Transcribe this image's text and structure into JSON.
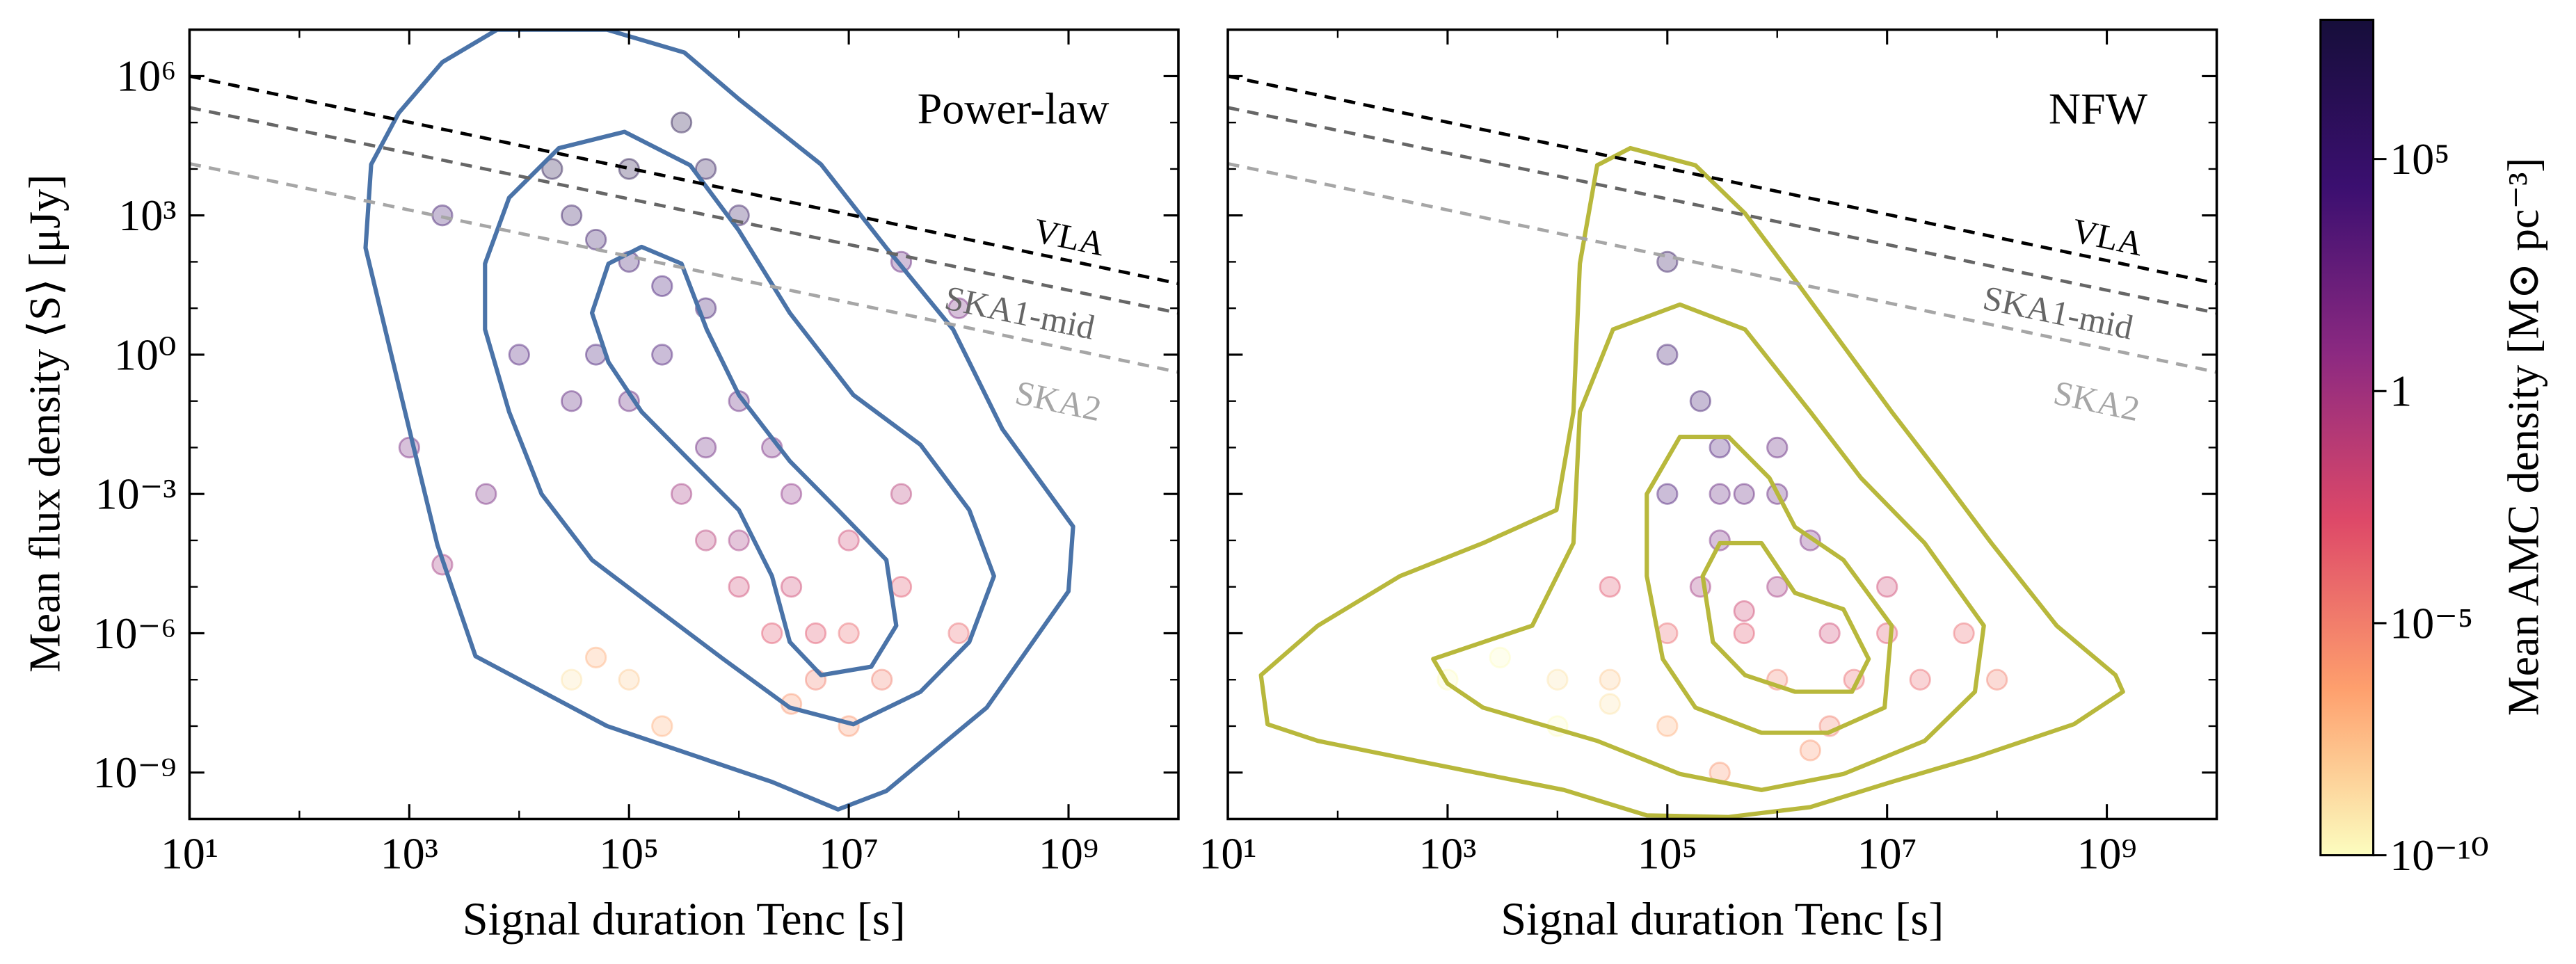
{
  "chart_data": [
    {
      "type": "scatter",
      "title": "Power-law",
      "xlabel": "Signal duration Tenc [s]",
      "ylabel": "Mean flux density ⟨S⟩ [μJy]",
      "xlim": [
        10,
        10000000000.0
      ],
      "ylim": [
        1e-10,
        10000000.0
      ],
      "log_x": true,
      "log_y": true,
      "xticks": [
        {
          "value": 10,
          "label": "10¹"
        },
        {
          "value": 1000,
          "label": "10³"
        },
        {
          "value": 100000,
          "label": "10⁵"
        },
        {
          "value": 10000000,
          "label": "10⁷"
        },
        {
          "value": 1000000000,
          "label": "10⁹"
        }
      ],
      "xminor": [
        100,
        10000,
        1000000,
        100000000
      ],
      "yticks": [
        {
          "value": 1000000,
          "label": "10⁶"
        },
        {
          "value": 1000,
          "label": "10³"
        },
        {
          "value": 1,
          "label": "10⁰"
        },
        {
          "value": 0.001,
          "label": "10⁻³"
        },
        {
          "value": 1e-06,
          "label": "10⁻⁶"
        },
        {
          "value": 1e-09,
          "label": "10⁻⁹"
        }
      ],
      "yminor": [
        100000.0,
        10000.0,
        100,
        10,
        0.1,
        0.01,
        0.0001,
        1e-05,
        1e-07,
        1e-08
      ],
      "alpha": 0.28,
      "contour_color": "#4a73a8",
      "x": [
        30000.0,
        50000.0,
        100000.0,
        200000.0,
        100000.0,
        300000.0,
        20000.0,
        500000.0,
        1000000.0,
        50000.0,
        200000.0,
        500000.0,
        1000000.0,
        2000000.0,
        3000000.0,
        500000.0,
        100000.0,
        30000.0,
        10000.0,
        1000000.0,
        3000000.0,
        5000000.0,
        10000000.0,
        20000000.0,
        5000000.0,
        3000000.0,
        10000000.0,
        2000000.0,
        1000000.0,
        500000.0,
        300000.0,
        10000000.0,
        30000000.0,
        30000000.0,
        100000000.0,
        100000.0,
        30000.0,
        50000.0,
        200000.0,
        1000.0,
        2000.0,
        100000000.0,
        30000000.0,
        2000.0,
        5000.0
      ],
      "values": [
        1000.0,
        300.0,
        100.0,
        30.0,
        10000.0,
        100000.0,
        10000.0,
        10000.0,
        1000.0,
        1,
        1,
        10,
        0.1,
        0.01,
        0.001,
        0.01,
        0.1,
        0.1,
        1,
        0.0001,
        1e-05,
        1e-06,
        1e-06,
        1e-07,
        1e-07,
        3e-08,
        1e-08,
        1e-06,
        1e-05,
        0.0001,
        0.001,
        0.0001,
        1e-05,
        0.001,
        1e-06,
        1e-07,
        1e-07,
        3e-07,
        1e-08,
        0.01,
        1000.0,
        10,
        100,
        3e-05,
        0.001
      ],
      "color_values": [
        1000000.0,
        300000.0,
        100000.0,
        30000.0,
        10000000.0,
        10000000.0,
        10000000.0,
        3000000.0,
        1000000.0,
        30000.0,
        10000.0,
        100000.0,
        1000.0,
        100.0,
        10,
        300.0,
        1000.0,
        3000.0,
        10000.0,
        1,
        0.01,
        0.001,
        0.0001,
        1e-05,
        1e-05,
        1e-06,
        1e-06,
        0.001,
        0.01,
        0.1,
        1,
        0.01,
        0.001,
        0.1,
        0.0001,
        1e-08,
        1e-09,
        1e-07,
        1e-07,
        100.0,
        100000.0,
        100.0,
        1000.0,
        1,
        100.0
      ],
      "contours": [
        {
          "x": [
            800.0,
            2000.0,
            6300.0,
            63000.0,
            320000.0,
            1000000.0,
            5600000.0,
            22000000.0,
            89000000.0,
            250000000.0,
            1100000000.0,
            1000000000.0,
            180000000.0,
            22000000.0,
            8000000.0,
            2000000.0,
            63000.0,
            4000.0,
            1800.0,
            1000.0,
            400.0,
            450.0
          ],
          "values": [
            160000.0,
            2000000.0,
            10000000.0,
            10000000.0,
            3200000.0,
            320000.0,
            12500.0,
            200.0,
            3.5,
            0.025,
            0.0002,
            8e-06,
            2.5e-08,
            4e-10,
            1.6e-10,
            6.3e-10,
            1e-08,
            3.2e-07,
            8e-05,
            0.025,
            200.0,
            12500.0
          ]
        },
        {
          "x": [
            4900.0,
            8100.0,
            23000.0,
            91000.0,
            360000.0,
            1000000.0,
            2900000.0,
            11000000.0,
            45000000.0,
            125000000.0,
            210000000.0,
            125000000.0,
            45000000.0,
            11000000.0,
            2900000.0,
            720000.0,
            180000.0,
            46000.0,
            16000.0,
            8100.0,
            4900.0
          ],
          "values": [
            91,
            2400.0,
            28000.0,
            63000.0,
            12000.0,
            470.0,
            7.9,
            0.135,
            0.0115,
            0.00045,
            1.7e-05,
            6.5e-07,
            5.5e-08,
            1.1e-08,
            2.5e-08,
            2.8e-07,
            3.3e-06,
            3.8e-05,
            0.001,
            0.059,
            3.5
          ]
        },
        {
          "x": [
            46000.0,
            65000.0,
            130000.0,
            300000.0,
            510000.0,
            1000000.0,
            2900000.0,
            8000000.0,
            22000000.0,
            27000000.0,
            16000000.0,
            5600000.0,
            2900000.0,
            2000000.0,
            1000000.0,
            360000.0,
            130000.0,
            65000.0
          ],
          "values": [
            7.9,
            91,
            210.0,
            91,
            3.5,
            0.135,
            0.0051,
            0.00045,
            3.8e-05,
            1.45e-06,
            1.9e-07,
            1.25e-07,
            6.5e-07,
            1.7e-05,
            0.00045,
            0.0051,
            0.059,
            0.69
          ]
        }
      ],
      "reference_lines": [
        {
          "name": "VLA",
          "color": "#000000",
          "x": [
            10,
            10000000000.0
          ],
          "values": [
            1000000.0,
            34
          ]
        },
        {
          "name": "SKA1-mid",
          "color": "#666666",
          "x": [
            10,
            10000000000.0
          ],
          "values": [
            210000.0,
            7.9
          ]
        },
        {
          "name": "SKA2",
          "color": "#a6a6a6",
          "x": [
            10,
            10000000000.0
          ],
          "values": [
            13000.0,
            0.42
          ]
        }
      ]
    },
    {
      "type": "scatter",
      "title": "NFW",
      "xlabel": "Signal duration Tenc [s]",
      "xlim": [
        10,
        10000000000.0
      ],
      "ylim": [
        1e-10,
        10000000.0
      ],
      "log_x": true,
      "log_y": true,
      "xticks": [
        {
          "value": 10,
          "label": "10¹"
        },
        {
          "value": 1000,
          "label": "10³"
        },
        {
          "value": 100000,
          "label": "10⁵"
        },
        {
          "value": 10000000,
          "label": "10⁷"
        },
        {
          "value": 1000000000,
          "label": "10⁹"
        }
      ],
      "xminor": [
        100,
        10000,
        1000000,
        100000000
      ],
      "yticks": [
        1000000,
        1000,
        1,
        0.001,
        1e-06,
        1e-09
      ],
      "yminor": [
        100000.0,
        10000.0,
        100,
        10,
        0.1,
        0.01,
        0.0001,
        1e-05,
        1e-07,
        1e-08
      ],
      "alpha": 0.28,
      "contour_color": "#b8b83c",
      "x": [
        100000.0,
        100000.0,
        200000.0,
        300000.0,
        500000.0,
        100000.0,
        1000000.0,
        2000000.0,
        1000000.0,
        3000000.0,
        5000000.0,
        10000000.0,
        20000000.0,
        3000000.0,
        1000000.0,
        500000.0,
        100000.0,
        30000.0,
        10000.0,
        3000.0,
        10000.0,
        30000.0,
        100000.0,
        300000.0,
        1000.0,
        300000.0,
        200000.0,
        10000000.0,
        50000000.0,
        100000000.0,
        2000000.0,
        500000.0,
        300000.0,
        1000000.0,
        30000.0
      ],
      "values": [
        100,
        1,
        0.1,
        0.01,
        0.001,
        0.001,
        0.001,
        0.0001,
        1e-05,
        1e-06,
        1e-07,
        1e-06,
        1e-07,
        1e-08,
        1e-07,
        1e-06,
        1e-06,
        1e-07,
        1e-07,
        3e-07,
        1e-08,
        3e-08,
        1e-08,
        1e-09,
        1e-07,
        0.0001,
        1e-05,
        1e-05,
        1e-06,
        1e-07,
        3e-09,
        3e-06,
        0.001,
        0.01,
        1e-05
      ],
      "color_values": [
        1000000.0,
        100000.0,
        100000.0,
        10000.0,
        1000.0,
        10000.0,
        1000.0,
        100,
        1,
        0.01,
        0.0001,
        0.001,
        0.0001,
        1e-05,
        1e-05,
        0.001,
        0.0001,
        1e-08,
        1e-09,
        1e-10,
        1e-10,
        1e-09,
        1e-07,
        1e-06,
        1e-10,
        100,
        1,
        0.01,
        0.0001,
        1e-05,
        1e-06,
        0.01,
        1000.0,
        1000.0,
        0.001
      ],
      "contours": [
        {
          "x": [
            20,
            66,
            370.0,
            2100.0,
            9800.0,
            14000.0,
            16000.0,
            23000.0,
            46000.0,
            180000.0,
            510000.0,
            1450000.0,
            4000000.0,
            11000000.0,
            32000000.0,
            89000000.0,
            350000000.0,
            1200000000.0,
            1400000000.0,
            500000000.0,
            63000000.0,
            11000000.0,
            2000000.0,
            360000.0,
            65000.0,
            11500.0,
            2100.0,
            370.0,
            66,
            23
          ],
          "values": [
            1.25e-07,
            1.45e-06,
            1.7e-05,
            8.7e-05,
            0.00045,
            0.059,
            91,
            12000.0,
            28000.0,
            12000.0,
            1100.0,
            41,
            1.55,
            0.059,
            0.0022,
            8.7e-05,
            1.45e-06,
            1.25e-07,
            5.5e-08,
            1.1e-08,
            2.1e-09,
            6.3e-10,
            1.8e-10,
            1.1e-10,
            1.2e-10,
            4.2e-10,
            9.3e-10,
            2.1e-09,
            4.8e-09,
            1.1e-08
          ]
        },
        {
          "x": [
            740.0,
            5900.0,
            14000.0,
            16000.0,
            32000.0,
            130000.0,
            510000.0,
            2000000.0,
            5800000.0,
            22000000.0,
            76000000.0,
            63000000.0,
            22000000.0,
            4000000.0,
            720000.0,
            130000.0,
            23000.0,
            2100.0,
            1000.0
          ],
          "values": [
            2.8e-07,
            1.45e-06,
            8.7e-05,
            0.059,
            3.5,
            12,
            3.5,
            0.059,
            0.0022,
            8.7e-05,
            1.45e-06,
            5.5e-08,
            4.8e-09,
            9.3e-10,
            4.2e-10,
            9.3e-10,
            4.8e-09,
            2.5e-08,
            8.3e-08
          ]
        },
        {
          "x": [
            65000.0,
            130000.0,
            360000.0,
            850000.0,
            1450000.0,
            4000000.0,
            11000000.0,
            9500000.0,
            2900000.0,
            720000.0,
            180000.0,
            91000.0,
            65000.0
          ],
          "values": [
            0.001,
            0.017,
            0.017,
            0.0022,
            0.000195,
            3.8e-05,
            1.45e-06,
            2.5e-08,
            7.2e-09,
            7.2e-09,
            2.5e-08,
            2.8e-07,
            1.7e-05
          ]
        },
        {
          "x": [
            210000.0,
            300000.0,
            720000.0,
            1450000.0,
            4000000.0,
            6800000.0,
            4800000.0,
            1450000.0,
            510000.0,
            260000.0
          ],
          "values": [
            1.7e-05,
            8.7e-05,
            8.7e-05,
            7.4e-06,
            3.3e-06,
            2.8e-07,
            5.5e-08,
            5.5e-08,
            1.25e-07,
            6.5e-07
          ]
        }
      ],
      "reference_lines": [
        {
          "name": "VLA",
          "color": "#000000",
          "x": [
            10,
            10000000000.0
          ],
          "values": [
            1000000.0,
            34
          ]
        },
        {
          "name": "SKA1-mid",
          "color": "#666666",
          "x": [
            10,
            10000000000.0
          ],
          "values": [
            210000.0,
            7.9
          ]
        },
        {
          "name": "SKA2",
          "color": "#a6a6a6",
          "x": [
            10,
            10000000000.0
          ],
          "values": [
            13000.0,
            0.42
          ]
        }
      ]
    }
  ],
  "colorbar": {
    "label": "Mean AMC density [M⊙ pc⁻³]",
    "lim": [
      1e-10,
      100000000.0
    ],
    "log": true,
    "ticks": [
      {
        "value": 1e-10,
        "label": "10⁻¹⁰"
      },
      {
        "value": 1e-05,
        "label": "10⁻⁵"
      },
      1,
      {
        "value": 100000,
        "label": "10⁵"
      }
    ],
    "colormap": [
      "#fcfdbf",
      "#fe9f6d",
      "#de4968",
      "#8c2981",
      "#3b0f70",
      "#160e3a"
    ]
  }
}
